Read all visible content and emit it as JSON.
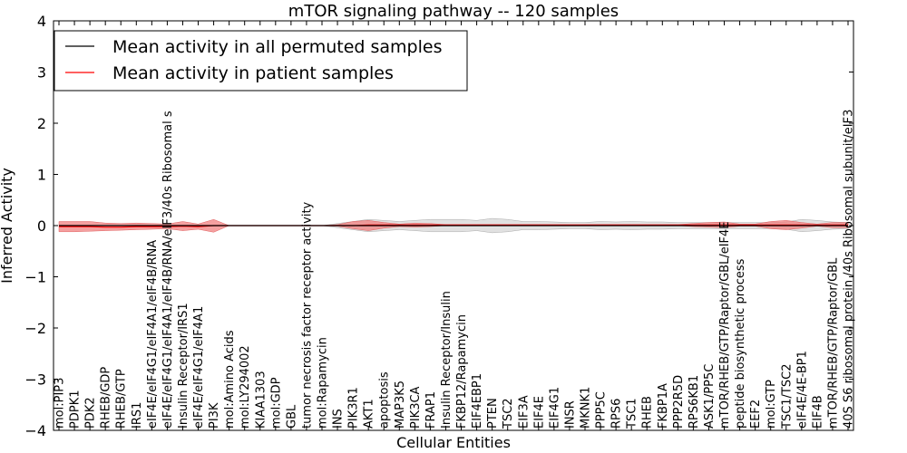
{
  "chart_data": {
    "type": "line",
    "title": "mTOR signaling pathway -- 120 samples",
    "xlabel": "Cellular Entities",
    "ylabel": "Inferred Activity",
    "ylim": [
      -4,
      4
    ],
    "yticks": [
      -4,
      -3,
      -2,
      -1,
      0,
      1,
      2,
      3,
      4
    ],
    "ytick_labels": [
      "−4",
      "−3",
      "−2",
      "−1",
      "0",
      "1",
      "2",
      "3",
      "4"
    ],
    "legend_position": "top-left",
    "colors": {
      "permuted": "#000000",
      "patient": "#ff0000",
      "patient_band": "#f08080",
      "permuted_band": "#c8c8c8"
    },
    "categories": [
      "mol:PIP3",
      "PDPK1",
      "PDK2",
      "RHEB/GDP",
      "RHEB/GTP",
      "IRS1",
      "eIF4E/eIF4G1/eIF4A1/eIF4B/RNA",
      "eIF4E/eIF4G1/eIF4A1/eIF4B/RNA/eIF3/40s Ribosomal s",
      "Insulin Receptor/IRS1",
      "eIF4E/eIF4G1/eIF4A1",
      "PI3K",
      "mol:Amino Acids",
      "mol:LY294002",
      "KIAA1303",
      "mol:GDP",
      "GBL",
      "tumor necrosis factor receptor activity",
      "mol:Rapamycin",
      "INS",
      "PIK3R1",
      "AKT1",
      "apoptosis",
      "MAP3K5",
      "PIK3CA",
      "FRAP1",
      "Insulin Receptor/Insulin",
      "FKBP12/Rapamycin",
      "EIF4EBP1",
      "PTEN",
      "TSC2",
      "EIF3A",
      "EIF4E",
      "EIF4G1",
      "INSR",
      "MKNK1",
      "PPP5C",
      "RPS6",
      "TSC1",
      "RHEB",
      "FKBP1A",
      "PPP2R5D",
      "RPS6KB1",
      "ASK1/PP5C",
      "mTOR/RHEB/GTP/Raptor/GBL/eIF4E",
      "peptide biosynthetic process",
      "EEF2",
      "mol:GTP",
      "TSC1/TSC2",
      "eIF4E/4E-BP1",
      "EIF4B",
      "mTOR/RHEB/GTP/Raptor/GBL",
      "40S S6 ribosomal protein /40s Ribosomal subunit/eIF3"
    ],
    "series": [
      {
        "name": "Mean activity in all permuted samples",
        "values": [
          0,
          0,
          0,
          0,
          0,
          0,
          0,
          0,
          0,
          0,
          0,
          0,
          0,
          0,
          0,
          0,
          0,
          0,
          0,
          0,
          0,
          0,
          0,
          0,
          0,
          0,
          0,
          0,
          0,
          0,
          0,
          0,
          0,
          0,
          0,
          0,
          0,
          0,
          0,
          0,
          0,
          0,
          0,
          0,
          0,
          0,
          0,
          0,
          0,
          0,
          0,
          0
        ],
        "upper": [
          0,
          0,
          0,
          0,
          0,
          0,
          0,
          0,
          0,
          0,
          0,
          0,
          0,
          0,
          0,
          0,
          0,
          0,
          0.04,
          0.08,
          0.12,
          0.1,
          0.08,
          0.1,
          0.12,
          0.12,
          0.12,
          0.1,
          0.14,
          0.12,
          0.08,
          0.08,
          0.07,
          0.06,
          0.06,
          0.08,
          0.07,
          0.08,
          0.07,
          0.07,
          0.06,
          0.06,
          0.06,
          0.06,
          0.06,
          0.06,
          0.06,
          0.07,
          0.12,
          0.1,
          0.07,
          0.06
        ],
        "lower": [
          0,
          0,
          0,
          0,
          0,
          0,
          0,
          0,
          0,
          0,
          0,
          0,
          0,
          0,
          0,
          0,
          0,
          0,
          -0.04,
          -0.08,
          -0.12,
          -0.1,
          -0.08,
          -0.1,
          -0.12,
          -0.12,
          -0.12,
          -0.1,
          -0.14,
          -0.12,
          -0.08,
          -0.08,
          -0.07,
          -0.06,
          -0.06,
          -0.08,
          -0.07,
          -0.08,
          -0.07,
          -0.07,
          -0.06,
          -0.06,
          -0.06,
          -0.06,
          -0.06,
          -0.06,
          -0.06,
          -0.07,
          -0.12,
          -0.1,
          -0.07,
          -0.06
        ]
      },
      {
        "name": "Mean activity in patient samples",
        "values": [
          -0.02,
          -0.02,
          -0.02,
          -0.03,
          -0.03,
          -0.02,
          -0.02,
          -0.02,
          -0.01,
          -0.02,
          0,
          0,
          0,
          0,
          0,
          0,
          0,
          0,
          0,
          0,
          0.01,
          0.01,
          0.01,
          0.01,
          0.01,
          0.01,
          0.01,
          0.01,
          0.01,
          0.01,
          0.01,
          0.01,
          0.01,
          0.01,
          0.01,
          0.01,
          0.01,
          0.01,
          0.01,
          0.01,
          0.01,
          0.01,
          0.01,
          0.01,
          0.01,
          0.01,
          0.01,
          0.01,
          0.01,
          0.01,
          0.01,
          0.01
        ],
        "upper": [
          0.08,
          0.08,
          0.08,
          0.05,
          0.04,
          0.05,
          0.04,
          0.03,
          0.08,
          0.03,
          0.12,
          0,
          0,
          0,
          0,
          0,
          0,
          0,
          0.02,
          0.08,
          0.1,
          0.06,
          0.03,
          0.05,
          0.04,
          0.02,
          0.02,
          0.02,
          0.02,
          0.02,
          0.02,
          0.02,
          0.02,
          0.02,
          0.02,
          0.02,
          0.02,
          0.02,
          0.02,
          0.02,
          0.02,
          0.04,
          0.06,
          0.07,
          0.03,
          0.03,
          0.08,
          0.1,
          0.06,
          0.03,
          0.06,
          0.06
        ],
        "lower": [
          -0.12,
          -0.12,
          -0.11,
          -0.1,
          -0.09,
          -0.08,
          -0.07,
          -0.06,
          -0.1,
          -0.07,
          -0.13,
          0,
          0,
          0,
          0,
          0,
          0,
          0,
          -0.01,
          -0.06,
          -0.1,
          -0.05,
          -0.02,
          -0.03,
          -0.02,
          0,
          0,
          0,
          0,
          0,
          0,
          0,
          0,
          0,
          0,
          0,
          0,
          0,
          0,
          0,
          0,
          -0.02,
          -0.03,
          -0.04,
          -0.01,
          -0.01,
          -0.06,
          -0.08,
          -0.05,
          -0.01,
          -0.04,
          -0.04
        ]
      }
    ]
  }
}
